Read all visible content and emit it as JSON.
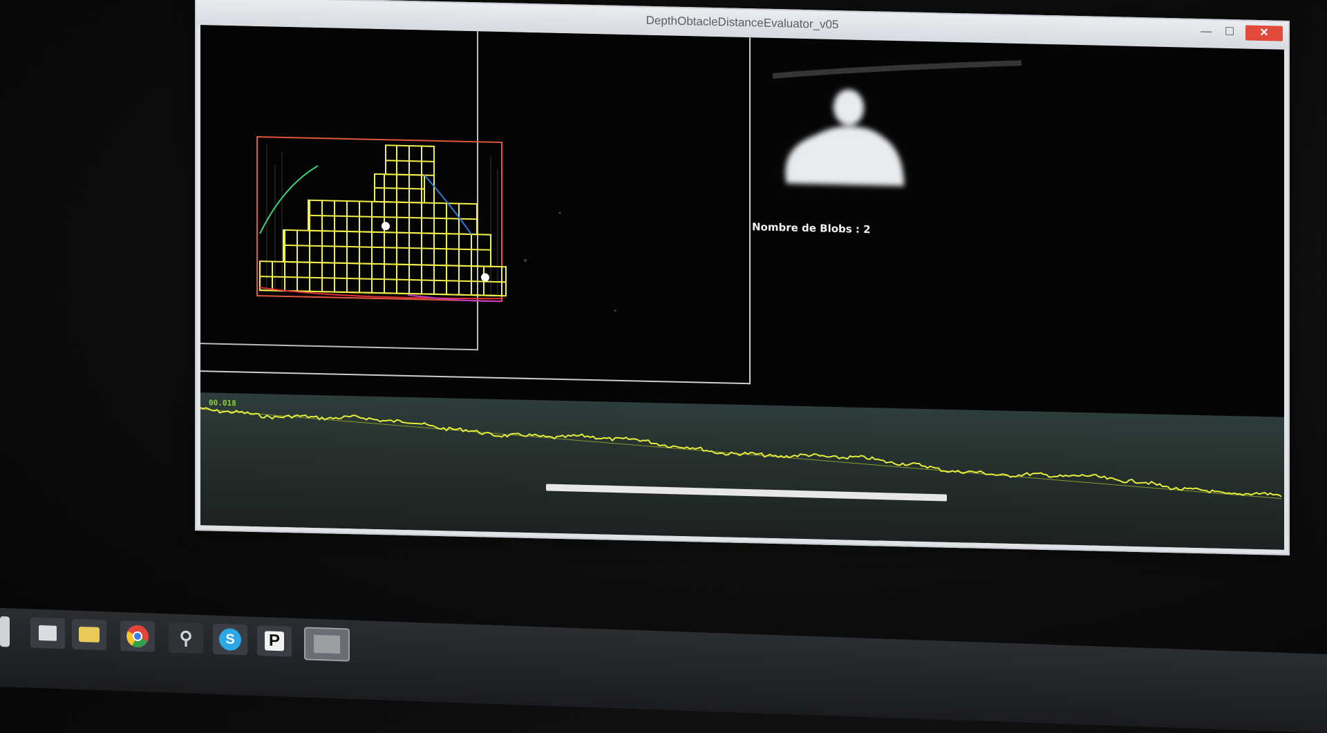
{
  "window": {
    "title": "DepthObtacleDistanceEvaluator_v05",
    "controls": {
      "minimize": "—",
      "maximize": "☐",
      "close": "✕"
    }
  },
  "blob_panel": {
    "blob_count_label": "Nombre de Blobs : 2"
  },
  "signal_graph": {
    "value_label": "00.018",
    "line_color": "#e6ef3a"
  },
  "colors": {
    "grid_line": "#f2f04a",
    "bounding_box": "#e0573a",
    "contour_blue": "#2f7ad8",
    "contour_red": "#e0303a",
    "contour_magenta": "#c23ac8"
  },
  "taskbar": {
    "icons": [
      "start-icon",
      "desktop-icon",
      "file-explorer-icon",
      "chrome-icon",
      "tool-icon",
      "skype-icon",
      "p-app-icon",
      "active-app-icon"
    ]
  }
}
